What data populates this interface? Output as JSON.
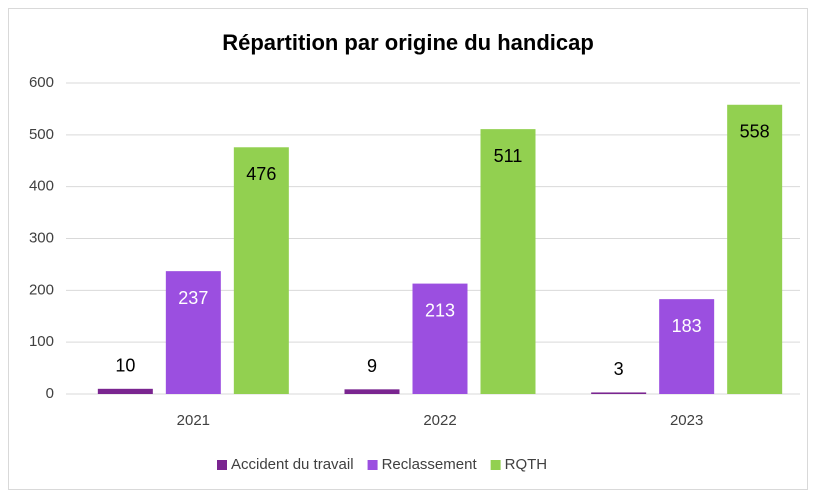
{
  "chart_data": {
    "type": "bar",
    "title": "Répartition par origine du handicap",
    "categories": [
      "2021",
      "2022",
      "2023"
    ],
    "series": [
      {
        "name": "Accident du travail",
        "color": "#7a2590",
        "values": [
          10,
          9,
          3
        ]
      },
      {
        "name": "Reclassement",
        "color": "#9b4fe0",
        "values": [
          237,
          213,
          183
        ]
      },
      {
        "name": "RQTH",
        "color": "#92d050",
        "values": [
          476,
          511,
          558
        ]
      }
    ],
    "ylim": [
      0,
      600
    ],
    "yticks": [
      0,
      100,
      200,
      300,
      400,
      500,
      600
    ],
    "grid": true,
    "legend": "bottom"
  }
}
